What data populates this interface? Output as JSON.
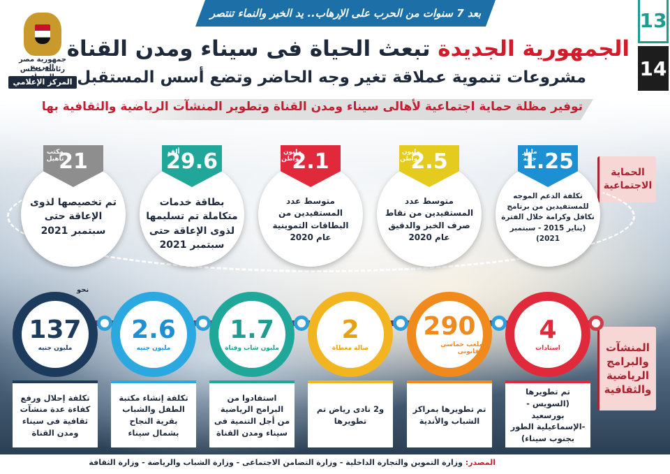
{
  "banner": "بعد 7 سنوات من الحرب على الإرهاب.. يد الخير والنماء تنتصر",
  "pages": {
    "current": "13",
    "next": "14"
  },
  "logo": {
    "line1": "جمهورية مصر العربية",
    "line2": "رئاسة مجلس الوزراء",
    "line3": "المركز الإعلامي"
  },
  "title": {
    "red": "الجمهورية الجديدة",
    "dark": "تبعث الحياة فى سيناء ومدن القناة"
  },
  "subtitle": "مشروعات تنموية عملاقة تغير وجه الحاضر وتضع أسس المستقبل",
  "tagline": "توفير مظلة حماية اجتماعية لأهالى سيناء ومدن القناة وتطوير المنشآت الرياضية والثقافية بها",
  "sections": {
    "social": "الحماية الاجتماعية",
    "sports": "المنشآت والبرامج الرياضية والثقافية"
  },
  "social_items": [
    {
      "value": "1.25",
      "unit": "مليار جنيه",
      "color": "#1d8fd3",
      "text": "تكلفة الدعم الموجه للمستفيدين من برنامج تكافل وكرامة خلال الفترة (يناير 2015 - سبتمبر 2021)"
    },
    {
      "value": "2.5",
      "unit": "مليون مواطن",
      "color": "#e6cb1f",
      "text": "متوسط عدد المستفيدين من نقاط صرف الخبز والدقيق عام 2020"
    },
    {
      "value": "2.1",
      "unit": "مليون مواطن",
      "color": "#e02a3b",
      "text": "متوسط عدد المستفيدين من البطاقات التموينية عام 2020"
    },
    {
      "value": "29.6",
      "unit": "ألف",
      "color": "#21a79a",
      "text": "بطاقة خدمات متكاملة تم تسليمها لذوى الإعاقة حتى سبتمبر 2021"
    },
    {
      "value": "21",
      "unit": "مكتب تأهيل",
      "color": "#8e8e8e",
      "text": "تم تخصيصها لذوى الإعاقة حتى سبتمبر 2021"
    }
  ],
  "sports_items": [
    {
      "value": "4",
      "unit": "استادات",
      "note": "",
      "color": "#e02a3b",
      "text": "تم تطويرها (السويس - بورسعيد -الإسماعيلية الطور بجنوب سيناء)"
    },
    {
      "value": "290",
      "unit": "ملعب خماسى وقانونى",
      "note": "",
      "color": "#f08a1c",
      "text": "تم تطويرها بمراكز الشباب والأندية"
    },
    {
      "value": "2",
      "unit": "صالة مغطاة",
      "note": "",
      "color": "#f2b51f",
      "text": "و2 نادى رياض تم تطويرها"
    },
    {
      "value": "1.7",
      "unit": "مليون شاب وفتاة",
      "note": "",
      "color": "#1fa89a",
      "text": "استفادوا من البرامج الرياضية من أجل التنمية فى سيناء ومدن القناة"
    },
    {
      "value": "2.6",
      "unit": "مليون جنيه",
      "note": "",
      "color": "#2aa8df",
      "text": "تكلفة إنشاء مكتبة الطفل والشباب بقرية النجاح بشمال سيناء"
    },
    {
      "value": "137",
      "unit": "مليون جنيه",
      "note": "نحو",
      "color": "#1b3a5c",
      "text": "تكلفة إحلال ورفع كفاءة عدة منشآت ثقافية فى سيناء ومدن القناة"
    }
  ],
  "footer": {
    "label": "المصدر:",
    "sources": "وزارة التموين والتجارة الداخلية - وزارة التضامن الاجتماعى - وزارة الشباب والرياضة - وزارة الثقافة"
  }
}
